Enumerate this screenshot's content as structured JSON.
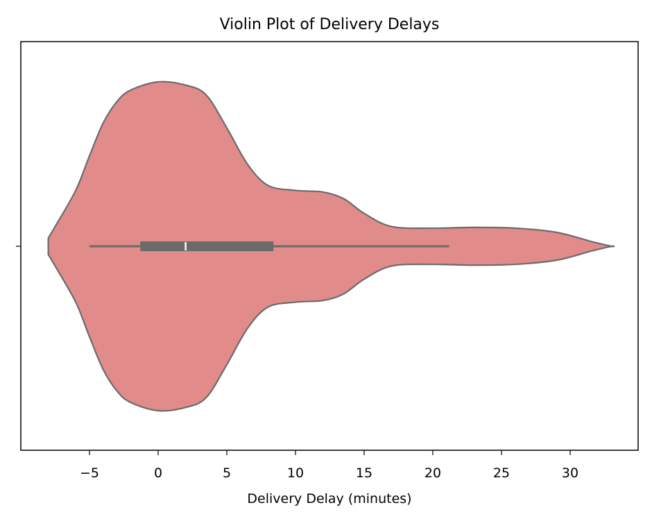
{
  "chart_data": {
    "type": "violin",
    "title": "Violin Plot of Delivery Delays",
    "xlabel": "Delivery Delay (minutes)",
    "ylabel": "",
    "xlim": [
      -10,
      35
    ],
    "xticks": [
      -5,
      0,
      5,
      10,
      15,
      20,
      25,
      30
    ],
    "xtick_labels": [
      "−5",
      "0",
      "5",
      "10",
      "15",
      "20",
      "25",
      "30"
    ],
    "grid": false,
    "fill_color": "#e18b8b",
    "line_color": "#6b6b6b",
    "median_color": "#ffffff",
    "density_profile": [
      {
        "x": -8.0,
        "w": 0.05
      },
      {
        "x": -7.5,
        "w": 0.12
      },
      {
        "x": -6.0,
        "w": 0.34
      },
      {
        "x": -5.0,
        "w": 0.55
      },
      {
        "x": -4.0,
        "w": 0.75
      },
      {
        "x": -3.0,
        "w": 0.88
      },
      {
        "x": -2.0,
        "w": 0.95
      },
      {
        "x": 0.0,
        "w": 1.0
      },
      {
        "x": 2.0,
        "w": 0.98
      },
      {
        "x": 3.5,
        "w": 0.92
      },
      {
        "x": 5.0,
        "w": 0.72
      },
      {
        "x": 6.5,
        "w": 0.5
      },
      {
        "x": 8.0,
        "w": 0.37
      },
      {
        "x": 10.0,
        "w": 0.34
      },
      {
        "x": 12.0,
        "w": 0.33
      },
      {
        "x": 13.5,
        "w": 0.29
      },
      {
        "x": 15.0,
        "w": 0.2
      },
      {
        "x": 17.0,
        "w": 0.12
      },
      {
        "x": 20.0,
        "w": 0.11
      },
      {
        "x": 23.0,
        "w": 0.115
      },
      {
        "x": 26.0,
        "w": 0.11
      },
      {
        "x": 29.0,
        "w": 0.085
      },
      {
        "x": 31.5,
        "w": 0.03
      },
      {
        "x": 33.0,
        "w": 0.0
      }
    ],
    "box": {
      "whisker_low": -5.0,
      "q1": -1.3,
      "median": 2.0,
      "q3": 8.4,
      "whisker_high": 21.2
    }
  }
}
